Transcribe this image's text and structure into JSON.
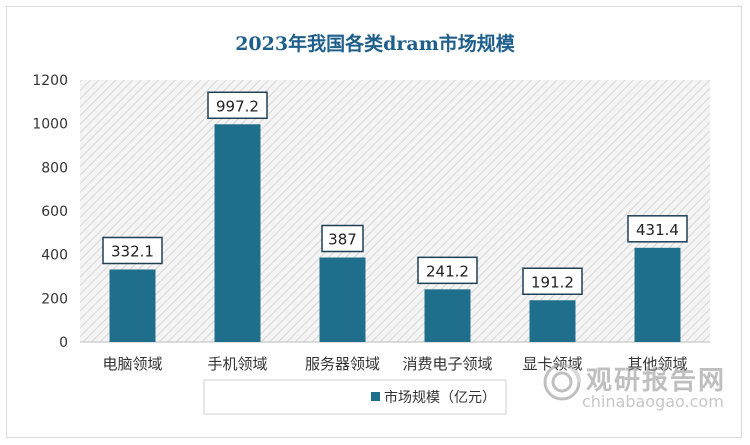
{
  "chart_data": {
    "type": "bar",
    "title": "2023年我国各类dram市场规模",
    "categories": [
      "电脑领域",
      "手机领域",
      "服务器领域",
      "消费电子领域",
      "显卡领域",
      "其他领域"
    ],
    "series": [
      {
        "name": "市场规模（亿元）",
        "values": [
          332.1,
          997.2,
          387,
          241.2,
          191.2,
          431.4
        ],
        "labels": [
          "332.1",
          "997.2",
          "387",
          "241.2",
          "191.2",
          "431.4"
        ],
        "color": "#1f6e8c"
      }
    ],
    "yticks": [
      "0",
      "200",
      "400",
      "600",
      "800",
      "1000",
      "1200"
    ],
    "ylim": [
      0,
      1200
    ],
    "xlabel": "",
    "ylabel": "",
    "legend_position": "bottom",
    "grid": false,
    "title_color": "#1f5f8b",
    "plot_background": "hatched-gray"
  },
  "watermark": {
    "cn": "观研报告网",
    "en": "chinabaogao.com"
  }
}
